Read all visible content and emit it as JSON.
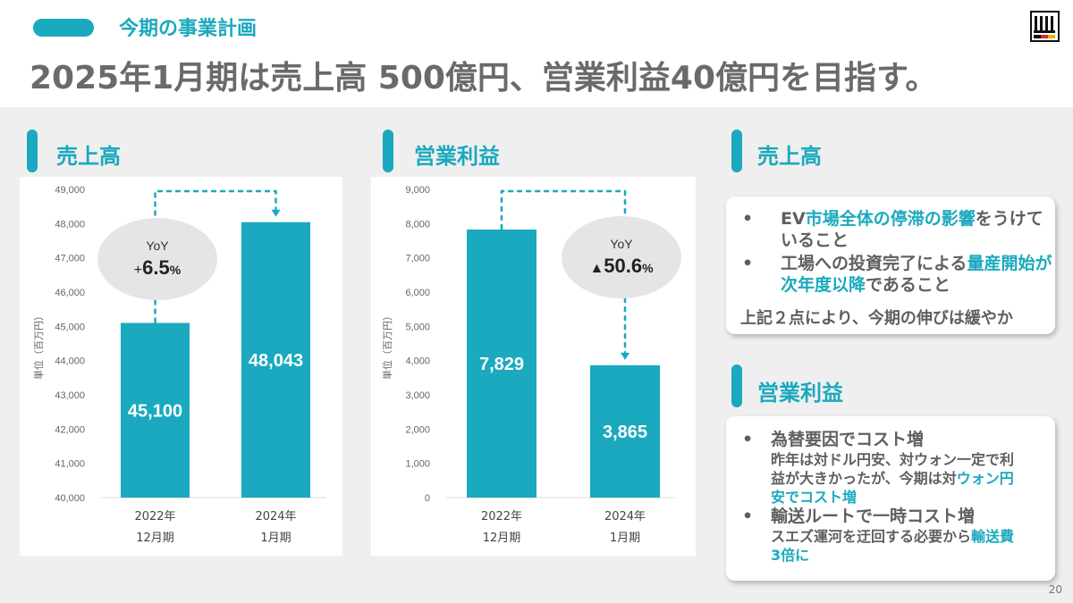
{
  "header": {
    "subtitle": "今期の事業計画",
    "title": "2025年1月期は売上高 500億円、営業利益40億円を目指す。"
  },
  "sections": {
    "sales_chart_title": "売上高",
    "profit_chart_title": "営業利益",
    "sales_note_title": "売上高",
    "profit_note_title": "営業利益"
  },
  "chart_data": [
    {
      "type": "bar",
      "name": "sales",
      "categories": [
        "2022年 12月期",
        "2024年 1月期"
      ],
      "category_lines": [
        [
          "2022年",
          "12月期"
        ],
        [
          "2024年",
          "1月期"
        ]
      ],
      "values": [
        45100,
        48043
      ],
      "value_labels": [
        "45,100",
        "48,043"
      ],
      "ylabel": "単位（百万円）",
      "ylim": [
        40000,
        49000
      ],
      "yticks": [
        40000,
        41000,
        42000,
        43000,
        44000,
        45000,
        46000,
        47000,
        48000,
        49000
      ],
      "ytick_labels": [
        "40,000",
        "41,000",
        "42,000",
        "43,000",
        "44,000",
        "45,000",
        "46,000",
        "47,000",
        "48,000",
        "49,000"
      ],
      "yoy_label": "YoY",
      "yoy_prefix": "+",
      "yoy_value": "6.5",
      "yoy_unit": "%",
      "bar_color": "#1aa9be"
    },
    {
      "type": "bar",
      "name": "operating_profit",
      "categories": [
        "2022年 12月期",
        "2024年 1月期"
      ],
      "category_lines": [
        [
          "2022年",
          "12月期"
        ],
        [
          "2024年",
          "1月期"
        ]
      ],
      "values": [
        7829,
        3865
      ],
      "value_labels": [
        "7,829",
        "3,865"
      ],
      "ylabel": "単位（百万円）",
      "ylim": [
        0,
        9000
      ],
      "yticks": [
        0,
        1000,
        2000,
        3000,
        4000,
        5000,
        6000,
        7000,
        8000,
        9000
      ],
      "ytick_labels": [
        "0",
        "1,000",
        "2,000",
        "3,000",
        "4,000",
        "5,000",
        "6,000",
        "7,000",
        "8,000",
        "9,000"
      ],
      "yoy_label": "YoY",
      "yoy_prefix": "▲",
      "yoy_value": "50.6",
      "yoy_unit": "%",
      "bar_color": "#1aa9be"
    }
  ],
  "sales_note": {
    "bullet1_part1": "EV",
    "bullet1_hl": "市場全体の停滞の影響",
    "bullet1_part2": "をうけて",
    "bullet1_line2": "いること",
    "bullet2_part1": "工場への投資完了による",
    "bullet2_hl": "量産開始が",
    "bullet2_line2_hl": "次年度以降",
    "bullet2_line2": "であること",
    "summary": "上記２点により、今期の伸びは緩やか"
  },
  "profit_note": {
    "bullet1_title": "為替要因でコスト増",
    "bullet1_sub_line1": "昨年は対ドル円安、対ウォン一定で利",
    "bullet1_sub_line2a": "益が大きかったが、今期は対",
    "bullet1_sub_line2_hl": "ウォン円",
    "bullet1_sub_line3_hl": "安でコスト増",
    "bullet2_title": "輸送ルートで一時コスト増",
    "bullet2_sub_line1a": "スエズ運河を迂回する必要から",
    "bullet2_sub_line1_hl": "輸送費",
    "bullet2_sub_line2_hl": "3倍に"
  },
  "page_number": "20",
  "bullet_char": "•",
  "accent_color": "#1aa9be"
}
